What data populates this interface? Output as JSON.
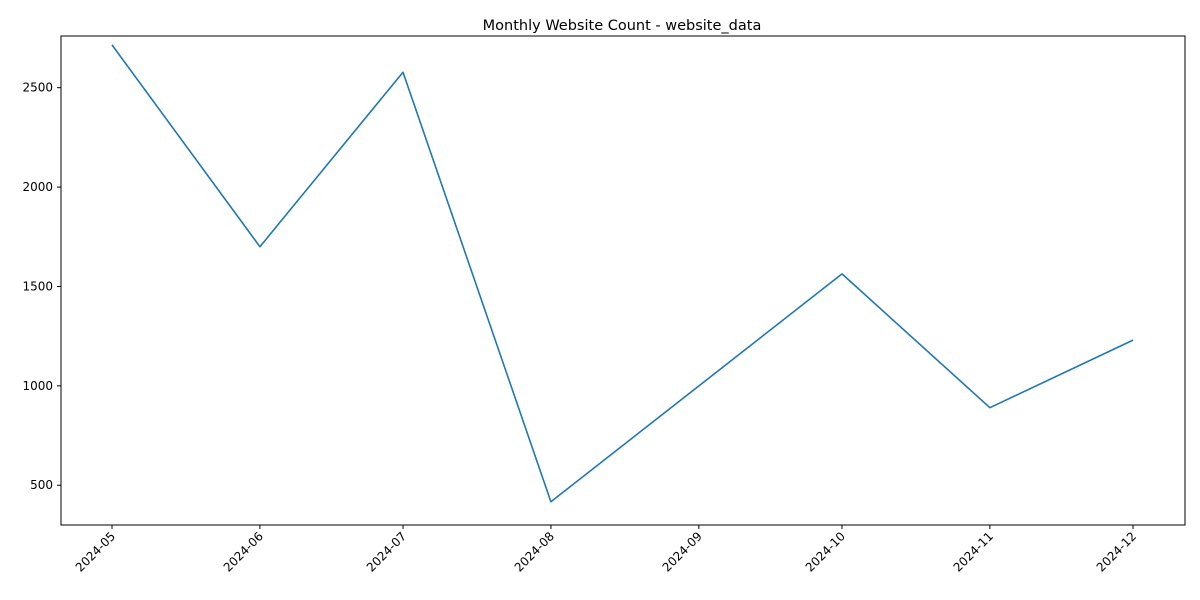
{
  "chart_data": {
    "type": "line",
    "title": "Monthly Website Count - website_data",
    "xlabel": "",
    "ylabel": "",
    "x": [
      "2024-05-01",
      "2024-06-01",
      "2024-07-01",
      "2024-08-01",
      "2024-09-01",
      "2024-10-01",
      "2024-11-01",
      "2024-12-01"
    ],
    "x_tick_labels": [
      "2024-05",
      "2024-06",
      "2024-07",
      "2024-08",
      "2024-09",
      "2024-10",
      "2024-11",
      "2024-12"
    ],
    "y_ticks": [
      500,
      1000,
      1500,
      2000,
      2500
    ],
    "ylim": [
      300,
      2760
    ],
    "series": [
      {
        "values": [
          2715,
          1700,
          2578,
          417,
          null,
          1563,
          890,
          1230
        ],
        "color": "#1f77b4"
      }
    ],
    "grid": false,
    "legend": "none"
  }
}
